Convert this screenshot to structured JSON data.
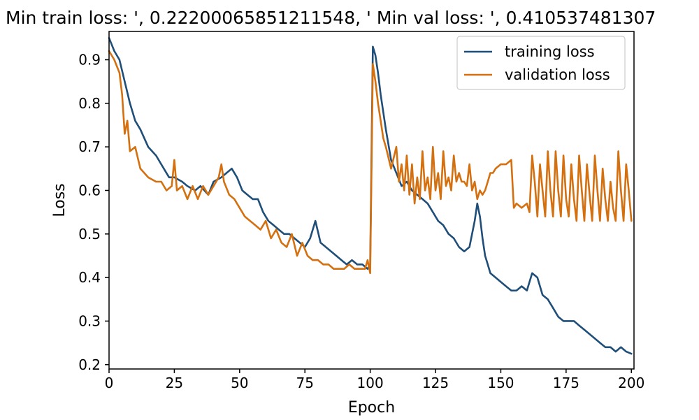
{
  "chart_data": {
    "type": "line",
    "title": "Min train loss: ', 0.22200065851211548, ' Min val loss: ', 0.410537481307",
    "xlabel": "Epoch",
    "ylabel": "Loss",
    "xlim": [
      0,
      201
    ],
    "ylim": [
      0.19,
      0.965
    ],
    "xticks": [
      0,
      25,
      50,
      75,
      100,
      125,
      150,
      175,
      200
    ],
    "yticks": [
      0.2,
      0.3,
      0.4,
      0.5,
      0.6,
      0.7,
      0.8,
      0.9
    ],
    "grid": false,
    "legend_position": "top-right",
    "series": [
      {
        "name": "training loss",
        "color": "#1f4e79",
        "x": [
          0,
          2,
          4,
          6,
          8,
          10,
          12,
          15,
          18,
          20,
          23,
          25,
          28,
          30,
          33,
          35,
          38,
          40,
          43,
          45,
          47,
          49,
          51,
          53,
          55,
          57,
          59,
          61,
          63,
          65,
          67,
          69,
          71,
          73,
          75,
          77,
          79,
          81,
          83,
          85,
          87,
          89,
          91,
          93,
          95,
          97,
          99,
          100,
          101,
          102,
          103,
          104,
          106,
          108,
          110,
          112,
          114,
          116,
          118,
          120,
          122,
          124,
          126,
          128,
          130,
          132,
          134,
          136,
          138,
          140,
          141,
          142,
          143,
          144,
          145,
          146,
          148,
          150,
          152,
          154,
          156,
          158,
          160,
          162,
          164,
          166,
          168,
          170,
          172,
          174,
          176,
          178,
          180,
          182,
          184,
          186,
          188,
          190,
          192,
          194,
          196,
          198,
          200
        ],
        "values": [
          0.95,
          0.92,
          0.9,
          0.85,
          0.8,
          0.76,
          0.74,
          0.7,
          0.68,
          0.66,
          0.63,
          0.63,
          0.62,
          0.61,
          0.6,
          0.61,
          0.59,
          0.62,
          0.63,
          0.64,
          0.65,
          0.63,
          0.6,
          0.59,
          0.58,
          0.58,
          0.55,
          0.53,
          0.52,
          0.51,
          0.5,
          0.5,
          0.49,
          0.48,
          0.47,
          0.49,
          0.53,
          0.48,
          0.47,
          0.46,
          0.45,
          0.44,
          0.43,
          0.44,
          0.43,
          0.43,
          0.42,
          0.43,
          0.93,
          0.91,
          0.87,
          0.82,
          0.74,
          0.67,
          0.64,
          0.61,
          0.62,
          0.6,
          0.59,
          0.58,
          0.57,
          0.55,
          0.53,
          0.52,
          0.5,
          0.49,
          0.47,
          0.46,
          0.47,
          0.53,
          0.57,
          0.54,
          0.49,
          0.45,
          0.43,
          0.41,
          0.4,
          0.39,
          0.38,
          0.37,
          0.37,
          0.38,
          0.37,
          0.41,
          0.4,
          0.36,
          0.35,
          0.33,
          0.31,
          0.3,
          0.3,
          0.3,
          0.29,
          0.28,
          0.27,
          0.26,
          0.25,
          0.24,
          0.24,
          0.23,
          0.24,
          0.23,
          0.225
        ]
      },
      {
        "name": "validation loss",
        "color": "#d4700f",
        "x": [
          0,
          2,
          4,
          5,
          6,
          7,
          8,
          10,
          12,
          15,
          18,
          20,
          22,
          24,
          25,
          26,
          28,
          30,
          32,
          34,
          36,
          38,
          40,
          42,
          43,
          44,
          46,
          48,
          50,
          52,
          54,
          56,
          58,
          60,
          62,
          64,
          66,
          68,
          70,
          72,
          74,
          76,
          78,
          80,
          82,
          84,
          86,
          88,
          90,
          92,
          94,
          96,
          98,
          99,
          100,
          101,
          102,
          103,
          104,
          105,
          106,
          108,
          110,
          111,
          112,
          113,
          114,
          115,
          116,
          117,
          118,
          119,
          120,
          121,
          122,
          123,
          124,
          125,
          126,
          127,
          128,
          129,
          130,
          131,
          132,
          133,
          134,
          135,
          136,
          137,
          138,
          139,
          140,
          141,
          142,
          143,
          144,
          145,
          146,
          147,
          148,
          150,
          152,
          154,
          155,
          156,
          158,
          160,
          161,
          162,
          163,
          164,
          165,
          166,
          167,
          168,
          169,
          170,
          171,
          172,
          173,
          174,
          175,
          176,
          177,
          178,
          179,
          180,
          181,
          182,
          183,
          184,
          185,
          186,
          187,
          188,
          189,
          190,
          191,
          192,
          193,
          194,
          195,
          196,
          197,
          198,
          199,
          200
        ],
        "values": [
          0.92,
          0.9,
          0.87,
          0.82,
          0.73,
          0.76,
          0.69,
          0.7,
          0.65,
          0.63,
          0.62,
          0.62,
          0.6,
          0.61,
          0.67,
          0.6,
          0.61,
          0.58,
          0.61,
          0.58,
          0.61,
          0.59,
          0.61,
          0.63,
          0.66,
          0.62,
          0.59,
          0.58,
          0.56,
          0.54,
          0.53,
          0.52,
          0.51,
          0.53,
          0.49,
          0.51,
          0.48,
          0.47,
          0.5,
          0.45,
          0.48,
          0.45,
          0.44,
          0.44,
          0.43,
          0.43,
          0.42,
          0.42,
          0.42,
          0.43,
          0.42,
          0.42,
          0.42,
          0.44,
          0.41,
          0.89,
          0.85,
          0.8,
          0.76,
          0.72,
          0.7,
          0.65,
          0.7,
          0.62,
          0.66,
          0.6,
          0.68,
          0.59,
          0.66,
          0.57,
          0.63,
          0.58,
          0.69,
          0.6,
          0.63,
          0.58,
          0.7,
          0.6,
          0.64,
          0.58,
          0.69,
          0.61,
          0.63,
          0.6,
          0.68,
          0.62,
          0.64,
          0.62,
          0.62,
          0.61,
          0.66,
          0.6,
          0.62,
          0.58,
          0.6,
          0.59,
          0.6,
          0.62,
          0.64,
          0.64,
          0.65,
          0.66,
          0.66,
          0.67,
          0.56,
          0.57,
          0.56,
          0.57,
          0.55,
          0.68,
          0.62,
          0.54,
          0.66,
          0.6,
          0.54,
          0.69,
          0.6,
          0.54,
          0.69,
          0.6,
          0.54,
          0.68,
          0.58,
          0.54,
          0.66,
          0.58,
          0.53,
          0.68,
          0.6,
          0.53,
          0.66,
          0.59,
          0.53,
          0.68,
          0.6,
          0.53,
          0.65,
          0.58,
          0.53,
          0.62,
          0.56,
          0.53,
          0.69,
          0.6,
          0.53,
          0.66,
          0.6,
          0.53
        ]
      }
    ]
  }
}
